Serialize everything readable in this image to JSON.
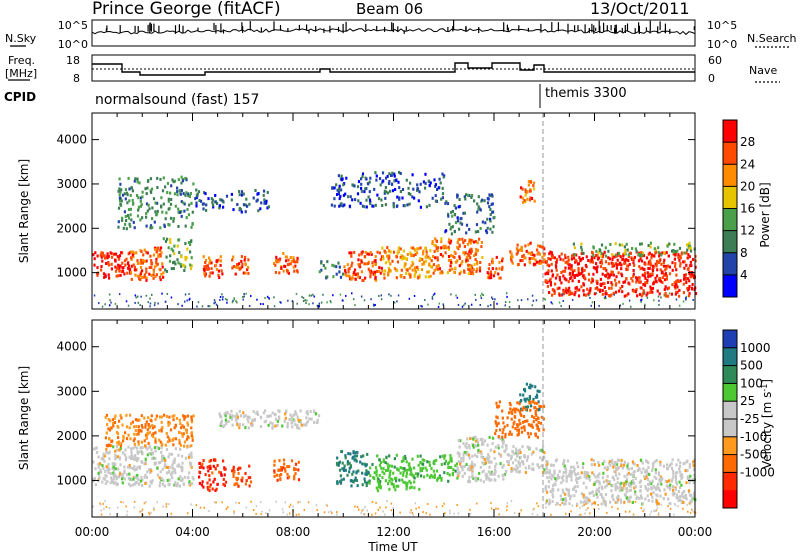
{
  "header": {
    "station": "Prince George (fitACF)",
    "beam": "Beam 06",
    "date": "13/Oct/2011"
  },
  "labels": {
    "nsky": "N.Sky",
    "nsearch": "N.Search",
    "freq_line1": "Freq.",
    "freq_line2": "[MHz]",
    "nave": "Nave",
    "cpid": "CPID",
    "exp_1": "normalsound (fast) 157",
    "exp_2": "themis 3300",
    "noise_ticks_left": [
      "10^5",
      "10^0"
    ],
    "noise_ticks_right": [
      "10^5",
      "10^0"
    ],
    "freq_ticks": [
      "18",
      "8"
    ],
    "nave_ticks": [
      "60",
      "0"
    ]
  },
  "colors": {
    "power": [
      "#0000ff",
      "#2244aa",
      "#3c7d55",
      "#4aa04a",
      "#e6c400",
      "#ff8c00",
      "#ff4a00",
      "#ff0000"
    ],
    "velocity": [
      "#1e3fb4",
      "#1f7a82",
      "#2e8b57",
      "#4cc832",
      "#c8c8c8",
      "#c8c8c8",
      "#ff9a1e",
      "#ff6a00",
      "#ff2a00",
      "#ff0000"
    ]
  },
  "chart_data": [
    {
      "type": "heatmap",
      "title": "Power",
      "xlabel": "Time UT",
      "ylabel": "Slant Range [km]",
      "x_ticks": [
        "00:00",
        "04:00",
        "08:00",
        "12:00",
        "16:00",
        "20:00",
        "00:00"
      ],
      "xlim": [
        0,
        24
      ],
      "y_ticks": [
        1000,
        2000,
        3000,
        4000
      ],
      "ylim": [
        180,
        4600
      ],
      "colorbar": {
        "label": "Power [dB]",
        "ticks": [
          4,
          8,
          12,
          16,
          20,
          24,
          28
        ],
        "range": [
          0,
          32
        ]
      },
      "regions": [
        {
          "t": [
            0.0,
            1.5
          ],
          "r": [
            900,
            1500
          ],
          "value": 29
        },
        {
          "t": [
            1.5,
            2.8
          ],
          "r": [
            850,
            1600
          ],
          "value": 25
        },
        {
          "t": [
            2.8,
            4.0
          ],
          "r": [
            1000,
            1800
          ],
          "value": 14
        },
        {
          "t": [
            4.4,
            5.2
          ],
          "r": [
            900,
            1400
          ],
          "value": 27
        },
        {
          "t": [
            5.5,
            6.2
          ],
          "r": [
            1000,
            1400
          ],
          "value": 26
        },
        {
          "t": [
            7.2,
            8.2
          ],
          "r": [
            1000,
            1500
          ],
          "value": 26
        },
        {
          "t": [
            9.0,
            10.0
          ],
          "r": [
            900,
            1300
          ],
          "value": 10
        },
        {
          "t": [
            10.0,
            11.5
          ],
          "r": [
            850,
            1500
          ],
          "value": 26
        },
        {
          "t": [
            11.5,
            13.5
          ],
          "r": [
            900,
            1600
          ],
          "value": 22
        },
        {
          "t": [
            13.5,
            15.5
          ],
          "r": [
            1000,
            1800
          ],
          "value": 24
        },
        {
          "t": [
            15.7,
            16.3
          ],
          "r": [
            900,
            1400
          ],
          "value": 27
        },
        {
          "t": [
            16.5,
            18.0
          ],
          "r": [
            1200,
            1700
          ],
          "value": 25
        },
        {
          "t": [
            17.0,
            17.6
          ],
          "r": [
            2600,
            3100
          ],
          "value": 24
        },
        {
          "t": [
            18.0,
            24.0
          ],
          "r": [
            500,
            1500
          ],
          "value": 29
        },
        {
          "t": [
            19.0,
            24.0
          ],
          "r": [
            1400,
            1700
          ],
          "value": 14
        },
        {
          "t": [
            1.0,
            4.0
          ],
          "r": [
            2000,
            3200
          ],
          "value": 11
        },
        {
          "t": [
            4.0,
            7.0
          ],
          "r": [
            2400,
            2900
          ],
          "value": 7
        },
        {
          "t": [
            9.5,
            14.0
          ],
          "r": [
            2500,
            3300
          ],
          "value": 6
        },
        {
          "t": [
            14.0,
            16.0
          ],
          "r": [
            1900,
            2800
          ],
          "value": 8
        }
      ]
    },
    {
      "type": "heatmap",
      "title": "Velocity",
      "xlabel": "Time UT",
      "ylabel": "Slant Range [km]",
      "x_ticks": [
        "00:00",
        "04:00",
        "08:00",
        "12:00",
        "16:00",
        "20:00",
        "00:00"
      ],
      "xlim": [
        0,
        24
      ],
      "y_ticks": [
        1000,
        2000,
        3000,
        4000
      ],
      "ylim": [
        180,
        4600
      ],
      "colorbar": {
        "label": "Velocity [m s^-1]",
        "ticks": [
          "1000",
          "500",
          "100",
          "25",
          "-25",
          "-100",
          "-500",
          "-1000"
        ]
      },
      "regions": [
        {
          "t": [
            0.0,
            4.0
          ],
          "r": [
            900,
            1800
          ],
          "value": 0
        },
        {
          "t": [
            0.5,
            4.0
          ],
          "r": [
            1800,
            2500
          ],
          "value": -100
        },
        {
          "t": [
            4.2,
            5.3
          ],
          "r": [
            800,
            1500
          ],
          "value": -700
        },
        {
          "t": [
            5.5,
            6.3
          ],
          "r": [
            900,
            1400
          ],
          "value": -500
        },
        {
          "t": [
            7.2,
            8.2
          ],
          "r": [
            1000,
            1500
          ],
          "value": -400
        },
        {
          "t": [
            5.0,
            9.0
          ],
          "r": [
            2200,
            2600
          ],
          "value": 0
        },
        {
          "t": [
            9.7,
            11.0
          ],
          "r": [
            900,
            1700
          ],
          "value": 300
        },
        {
          "t": [
            11.0,
            14.5
          ],
          "r": [
            1000,
            1600
          ],
          "value": 80
        },
        {
          "t": [
            11.0,
            13.0
          ],
          "r": [
            800,
            1000
          ],
          "value": 60
        },
        {
          "t": [
            14.5,
            16.5
          ],
          "r": [
            1000,
            2000
          ],
          "value": 0
        },
        {
          "t": [
            16.5,
            18.0
          ],
          "r": [
            1200,
            1800
          ],
          "value": 0
        },
        {
          "t": [
            17.0,
            17.8
          ],
          "r": [
            2600,
            3200
          ],
          "value": 400
        },
        {
          "t": [
            18.0,
            24.0
          ],
          "r": [
            500,
            1500
          ],
          "value": 0
        },
        {
          "t": [
            16.0,
            18.0
          ],
          "r": [
            2000,
            2800
          ],
          "value": -200
        }
      ]
    }
  ]
}
